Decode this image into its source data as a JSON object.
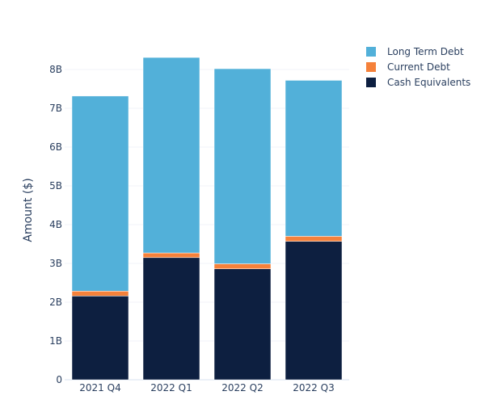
{
  "chart_data": {
    "type": "bar",
    "stacked": true,
    "title": "",
    "xlabel": "",
    "ylabel": "Amount ($)",
    "ylim": [
      0,
      8500000000
    ],
    "yticks": [
      0,
      1000000000,
      2000000000,
      3000000000,
      4000000000,
      5000000000,
      6000000000,
      7000000000,
      8000000000
    ],
    "ytick_labels": [
      "0",
      "1B",
      "2B",
      "3B",
      "4B",
      "5B",
      "6B",
      "7B",
      "8B"
    ],
    "grid": true,
    "legend_position": "top-right",
    "categories": [
      "2021 Q4",
      "2022 Q1",
      "2022 Q2",
      "2022 Q3"
    ],
    "series": [
      {
        "name": "Cash Equivalents",
        "color": "#0d1f40",
        "values": [
          2160000000,
          3150000000,
          2860000000,
          3570000000
        ]
      },
      {
        "name": "Current Debt",
        "color": "#f5813a",
        "values": [
          125000000,
          120000000,
          130000000,
          130000000
        ]
      },
      {
        "name": "Long Term Debt",
        "color": "#52b0d9",
        "values": [
          5030000000,
          5040000000,
          5030000000,
          4020000000
        ]
      }
    ],
    "legend_order": [
      "Long Term Debt",
      "Current Debt",
      "Cash Equivalents"
    ]
  }
}
